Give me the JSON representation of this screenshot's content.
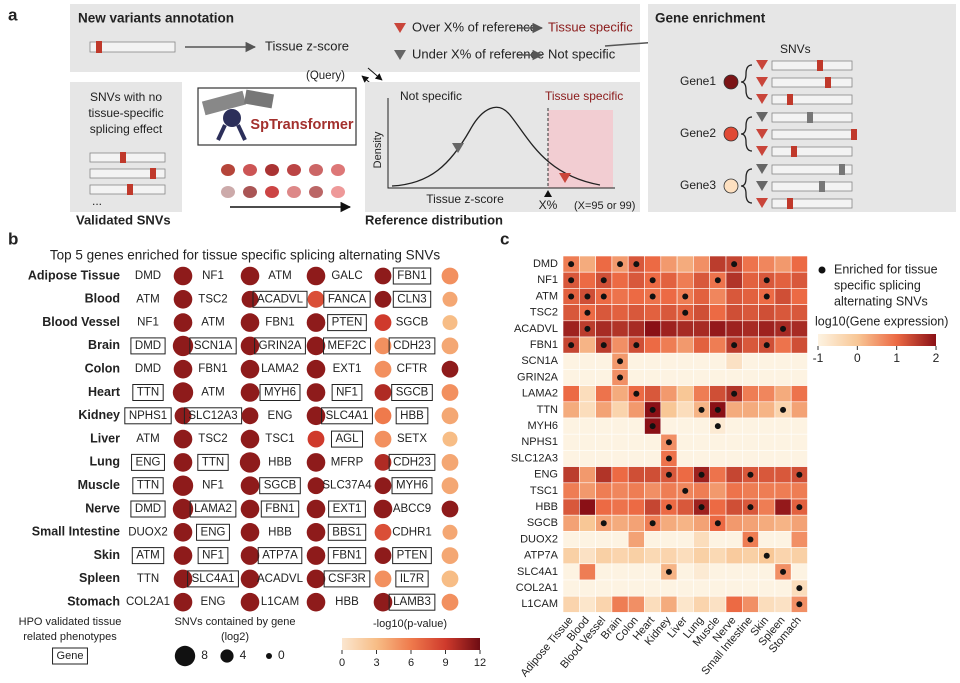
{
  "labels": {
    "a": "a",
    "b": "b",
    "c": "c"
  },
  "panel_a": {
    "annotation_title": "New variants annotation",
    "z_score": "Tissue z-score",
    "over": "Over X% of reference",
    "tissue_specific": "Tissue specific",
    "under": "Under X% of reference",
    "not_specific": "Not specific",
    "query": "(Query)",
    "snv_note": [
      "SNVs with no",
      "tissue-specific",
      "splicing effect"
    ],
    "ellipsis": "...",
    "validated": "Validated SNVs",
    "model": "SpTransformer",
    "reference": "Reference distribution",
    "density": {
      "left": "Not specific",
      "right": "Tissue specific",
      "ylabel": "Density",
      "xlabel": "Tissue z-score",
      "threshold": "X%",
      "note": "(X=95 or 99)"
    },
    "enrichment": {
      "title": "Gene enrichment",
      "snvs": "SNVs",
      "genes": [
        "Gene1",
        "Gene2",
        "Gene3"
      ]
    }
  },
  "chart_data": [
    {
      "type": "dotmatrix",
      "title": "Top 5 genes enriched for tissue specific splicing alternating SNVs",
      "rows": [
        "Adipose Tissue",
        "Blood",
        "Blood Vessel",
        "Brain",
        "Colon",
        "Heart",
        "Kidney",
        "Liver",
        "Lung",
        "Muscle",
        "Nerve",
        "Small Intestine",
        "Skin",
        "Spleen",
        "Stomach"
      ],
      "genes": [
        [
          "DMD",
          "NF1",
          "ATM",
          "GALC",
          "FBN1"
        ],
        [
          "ATM",
          "TSC2",
          "ACADVL",
          "FANCA",
          "CLN3"
        ],
        [
          "NF1",
          "ATM",
          "FBN1",
          "PTEN",
          "SGCB"
        ],
        [
          "DMD",
          "SCN1A",
          "GRIN2A",
          "MEF2C",
          "CDH23"
        ],
        [
          "DMD",
          "FBN1",
          "LAMA2",
          "EXT1",
          "CFTR"
        ],
        [
          "TTN",
          "ATM",
          "MYH6",
          "NF1",
          "SGCB"
        ],
        [
          "NPHS1",
          "SLC12A3",
          "ENG",
          "SLC4A1",
          "HBB"
        ],
        [
          "ATM",
          "TSC2",
          "TSC1",
          "AGL",
          "SETX"
        ],
        [
          "ENG",
          "TTN",
          "HBB",
          "MFRP",
          "CDH23"
        ],
        [
          "TTN",
          "NF1",
          "SGCB",
          "SLC37A4",
          "MYH6"
        ],
        [
          "DMD",
          "LAMA2",
          "FBN1",
          "EXT1",
          "ABCC9"
        ],
        [
          "DUOX2",
          "ENG",
          "HBB",
          "BBS1",
          "CDHR1"
        ],
        [
          "ATM",
          "NF1",
          "ATP7A",
          "FBN1",
          "PTEN"
        ],
        [
          "TTN",
          "SLC4A1",
          "ACADVL",
          "CSF3R",
          "IL7R"
        ],
        [
          "COL2A1",
          "ENG",
          "L1CAM",
          "HBB",
          "LAMB3"
        ]
      ],
      "hpo": [
        [
          false,
          false,
          false,
          false,
          true
        ],
        [
          false,
          false,
          true,
          true,
          true
        ],
        [
          false,
          false,
          false,
          true,
          false
        ],
        [
          true,
          true,
          true,
          true,
          true
        ],
        [
          false,
          false,
          false,
          false,
          false
        ],
        [
          true,
          false,
          true,
          true,
          true
        ],
        [
          true,
          true,
          false,
          true,
          true
        ],
        [
          false,
          false,
          false,
          true,
          false
        ],
        [
          true,
          true,
          false,
          false,
          true
        ],
        [
          true,
          false,
          true,
          false,
          true
        ],
        [
          true,
          true,
          true,
          true,
          false
        ],
        [
          false,
          true,
          false,
          true,
          false
        ],
        [
          true,
          true,
          true,
          true,
          true
        ],
        [
          false,
          true,
          false,
          true,
          true
        ],
        [
          false,
          false,
          false,
          false,
          true
        ]
      ],
      "sizes": [
        [
          7,
          7,
          7,
          6,
          6
        ],
        [
          7,
          6,
          6,
          6,
          5
        ],
        [
          7,
          7,
          7,
          6,
          5
        ],
        [
          8,
          7,
          7,
          6,
          6
        ],
        [
          7,
          7,
          7,
          6,
          6
        ],
        [
          8,
          7,
          7,
          6,
          6
        ],
        [
          6,
          6,
          7,
          6,
          6
        ],
        [
          7,
          7,
          6,
          6,
          5
        ],
        [
          7,
          8,
          7,
          6,
          6
        ],
        [
          8,
          7,
          6,
          6,
          6
        ],
        [
          8,
          7,
          7,
          7,
          6
        ],
        [
          7,
          7,
          7,
          6,
          5
        ],
        [
          7,
          7,
          7,
          6,
          6
        ],
        [
          7,
          7,
          7,
          6,
          6
        ],
        [
          7,
          7,
          7,
          7,
          6
        ]
      ],
      "pvalues": [
        [
          11,
          11,
          11,
          11,
          5
        ],
        [
          11,
          11,
          8,
          11,
          4
        ],
        [
          11,
          11,
          11,
          9,
          3
        ],
        [
          11,
          11,
          11,
          5,
          4
        ],
        [
          11,
          11,
          11,
          5,
          11
        ],
        [
          11,
          11,
          11,
          10,
          5
        ],
        [
          11,
          11,
          11,
          6,
          4
        ],
        [
          11,
          11,
          9,
          5,
          3
        ],
        [
          11,
          11,
          11,
          10,
          4
        ],
        [
          11,
          11,
          11,
          11,
          4
        ],
        [
          11,
          11,
          11,
          11,
          11
        ],
        [
          11,
          11,
          11,
          8,
          4
        ],
        [
          11,
          11,
          11,
          11,
          4
        ],
        [
          11,
          11,
          11,
          5,
          3
        ],
        [
          11,
          11,
          11,
          11,
          5
        ]
      ],
      "hpo_legend": [
        "HPO validated tissue",
        "related phenotypes"
      ],
      "hpo_example": "Gene",
      "size_title": [
        "SNVs contained  by gene",
        "(log2)"
      ],
      "size_ticks": [
        8,
        4,
        0
      ],
      "color_title": "-log10(p-value)",
      "clim": [
        0,
        12
      ],
      "cticks": [
        0,
        3,
        6,
        9,
        12
      ],
      "colors": [
        "#fbe6cf",
        "#f7bd86",
        "#ef7a4c",
        "#cf3a2c",
        "#6e0c13"
      ]
    },
    {
      "type": "heatmap",
      "genes": [
        "DMD",
        "NF1",
        "ATM",
        "TSC2",
        "ACADVL",
        "FBN1",
        "SCN1A",
        "GRIN2A",
        "LAMA2",
        "TTN",
        "MYH6",
        "NPHS1",
        "SLC12A3",
        "ENG",
        "TSC1",
        "HBB",
        "SGCB",
        "DUOX2",
        "ATP7A",
        "SLC4A1",
        "COL2A1",
        "L1CAM"
      ],
      "tissues": [
        "Adipose Tissue",
        "Blood",
        "Blood Vessel",
        "Brain",
        "Colon",
        "Heart",
        "Kidney",
        "Liver",
        "Lung",
        "Muscle",
        "Nerve",
        "Small Intestine",
        "Skin",
        "Spleen",
        "Stomach"
      ],
      "values": [
        [
          0.8,
          0.3,
          1.0,
          0.5,
          1.2,
          1.0,
          0.5,
          0.3,
          0.6,
          1.5,
          1.4,
          0.9,
          0.7,
          0.5,
          1.0
        ],
        [
          1.2,
          1.0,
          1.3,
          1.0,
          1.2,
          1.0,
          1.1,
          0.8,
          1.2,
          0.9,
          1.6,
          1.1,
          1.2,
          1.1,
          1.2
        ],
        [
          1.1,
          1.3,
          1.0,
          0.9,
          1.0,
          0.9,
          1.0,
          0.8,
          1.1,
          0.7,
          1.2,
          1.1,
          1.0,
          1.3,
          1.0
        ],
        [
          1.2,
          1.0,
          1.2,
          1.1,
          1.2,
          1.1,
          1.2,
          1.1,
          1.3,
          1.0,
          1.3,
          1.2,
          1.3,
          1.2,
          1.2
        ],
        [
          1.8,
          1.5,
          1.7,
          1.6,
          1.7,
          2.0,
          1.8,
          1.7,
          1.7,
          1.9,
          1.8,
          1.7,
          1.8,
          1.7,
          1.7
        ],
        [
          1.4,
          0.2,
          1.5,
          0.6,
          1.3,
          1.0,
          0.8,
          0.5,
          1.1,
          0.8,
          1.5,
          1.2,
          1.3,
          0.9,
          1.3
        ],
        [
          -1,
          -1,
          -1,
          0.5,
          -1,
          -1,
          -1,
          -1,
          -1,
          -1,
          -0.6,
          -1,
          -1,
          -1,
          -1
        ],
        [
          -1,
          -1,
          -1,
          0.6,
          -1,
          -1,
          -1,
          -1,
          -1,
          -1,
          -1,
          -1,
          -1,
          -1,
          -1
        ],
        [
          1.0,
          -0.5,
          0.9,
          0.3,
          1.0,
          1.2,
          0.5,
          0.0,
          0.8,
          1.3,
          1.6,
          0.8,
          0.7,
          0.3,
          0.9
        ],
        [
          0.3,
          -0.5,
          0.4,
          -0.3,
          0.5,
          2.0,
          0.0,
          -0.5,
          0.2,
          2.0,
          0.3,
          0.3,
          0.2,
          -0.3,
          0.4
        ],
        [
          -1,
          -1,
          -1,
          -1,
          -1,
          2.0,
          -1,
          -1,
          -1,
          -0.8,
          -1,
          -1,
          -1,
          -1,
          -1
        ],
        [
          -1,
          -1,
          -1,
          -1,
          -1,
          -1,
          0.6,
          -1,
          -1,
          -1,
          -1,
          -1,
          -1,
          -1,
          -1
        ],
        [
          -1,
          -1,
          -1,
          -1,
          -1,
          -1,
          0.9,
          -1,
          -1,
          -1,
          -1,
          -1,
          -1,
          -1,
          -1
        ],
        [
          1.5,
          0.5,
          1.6,
          1.0,
          1.3,
          1.3,
          1.2,
          1.0,
          1.8,
          0.9,
          1.4,
          1.2,
          1.2,
          1.2,
          1.3
        ],
        [
          0.8,
          0.5,
          0.8,
          0.7,
          0.8,
          0.6,
          0.8,
          0.7,
          0.8,
          0.5,
          0.9,
          0.8,
          0.8,
          0.8,
          0.8
        ],
        [
          1.2,
          2.0,
          1.0,
          0.9,
          1.0,
          1.4,
          1.0,
          1.2,
          1.8,
          1.0,
          1.3,
          1.2,
          0.8,
          1.9,
          1.1
        ],
        [
          0.4,
          0.0,
          0.4,
          0.3,
          0.4,
          0.8,
          0.3,
          0.2,
          0.4,
          1.0,
          0.5,
          0.4,
          0.3,
          0.2,
          0.4
        ],
        [
          -1,
          -1,
          -1,
          -1,
          0.4,
          -1,
          -1,
          -1,
          -0.5,
          -1,
          -1,
          0.8,
          -1,
          -1,
          0.6
        ],
        [
          -0.2,
          -0.6,
          -0.2,
          -0.3,
          -0.2,
          -0.4,
          -0.3,
          -0.5,
          -0.2,
          -0.4,
          -0.1,
          -0.2,
          0.0,
          -0.3,
          -0.2
        ],
        [
          -1,
          0.8,
          -1,
          -1,
          -1,
          -1,
          0.2,
          -1,
          -0.8,
          -1,
          -1,
          -1,
          -1,
          0.6,
          -1
        ],
        [
          -1,
          -1,
          -1,
          -1,
          -1,
          -1,
          -1,
          -1,
          -1,
          -1,
          -1,
          -1,
          -1,
          -1,
          -0.5
        ],
        [
          -0.3,
          -0.7,
          -0.3,
          0.8,
          0.6,
          -0.5,
          0.3,
          -0.7,
          -0.3,
          -0.6,
          1.0,
          0.6,
          -0.5,
          -0.6,
          0.6
        ]
      ],
      "dot_legend": [
        "Enriched for tissue",
        "specific splicing",
        "alternating SNVs"
      ],
      "color_title": "log10(Gene expression)",
      "clim": [
        -1,
        2
      ],
      "cticks": [
        -1,
        0,
        1,
        2
      ],
      "colors": [
        "#fdf3e2",
        "#f8c796",
        "#ec6a44",
        "#8a1016"
      ]
    }
  ]
}
